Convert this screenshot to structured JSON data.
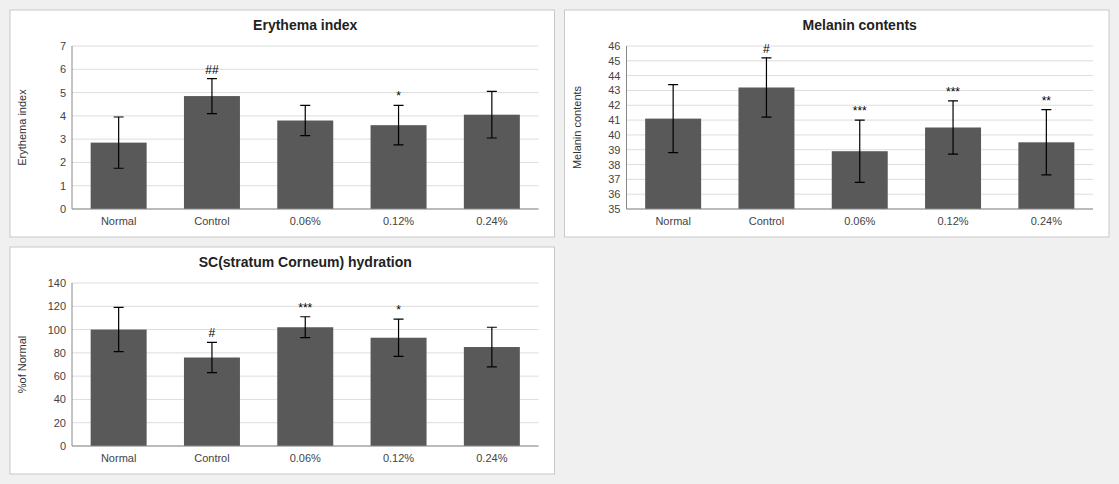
{
  "chart_data": [
    {
      "type": "bar",
      "title": "Erythema index",
      "ylabel": "Erythema index",
      "categories": [
        "Normal",
        "Control",
        "0.06%",
        "0.12%",
        "0.24%"
      ],
      "values": [
        2.85,
        4.85,
        3.8,
        3.6,
        4.05
      ],
      "errors": [
        1.1,
        0.75,
        0.65,
        0.85,
        1.0
      ],
      "annotations": [
        null,
        "##",
        null,
        "*",
        null
      ],
      "ylim": [
        0,
        7
      ],
      "yticks": [
        0,
        1,
        2,
        3,
        4,
        5,
        6,
        7
      ],
      "grid": true,
      "color": "#595959"
    },
    {
      "type": "bar",
      "title": "Melanin contents",
      "ylabel": "Melanin contents",
      "categories": [
        "Normal",
        "Control",
        "0.06%",
        "0.12%",
        "0.24%"
      ],
      "values": [
        41.1,
        43.2,
        38.9,
        40.5,
        39.5
      ],
      "errors": [
        2.3,
        2.0,
        2.1,
        1.8,
        2.2
      ],
      "annotations": [
        null,
        "#",
        "***",
        "***",
        "**"
      ],
      "ylim": [
        35,
        46
      ],
      "yticks": [
        35,
        36,
        37,
        38,
        39,
        40,
        41,
        42,
        43,
        44,
        45,
        46
      ],
      "grid": true,
      "color": "#595959"
    },
    {
      "type": "bar",
      "title": "SC(stratum Corneum) hydration",
      "ylabel": "%of Normal",
      "categories": [
        "Normal",
        "Control",
        "0.06%",
        "0.12%",
        "0.24%"
      ],
      "values": [
        100,
        76,
        102,
        93,
        85
      ],
      "errors": [
        19,
        13,
        9,
        16,
        17
      ],
      "annotations": [
        null,
        "#",
        "***",
        "*",
        null
      ],
      "ylim": [
        0,
        140
      ],
      "yticks": [
        0,
        20,
        40,
        60,
        80,
        100,
        120,
        140
      ],
      "grid": true,
      "color": "#595959"
    }
  ]
}
